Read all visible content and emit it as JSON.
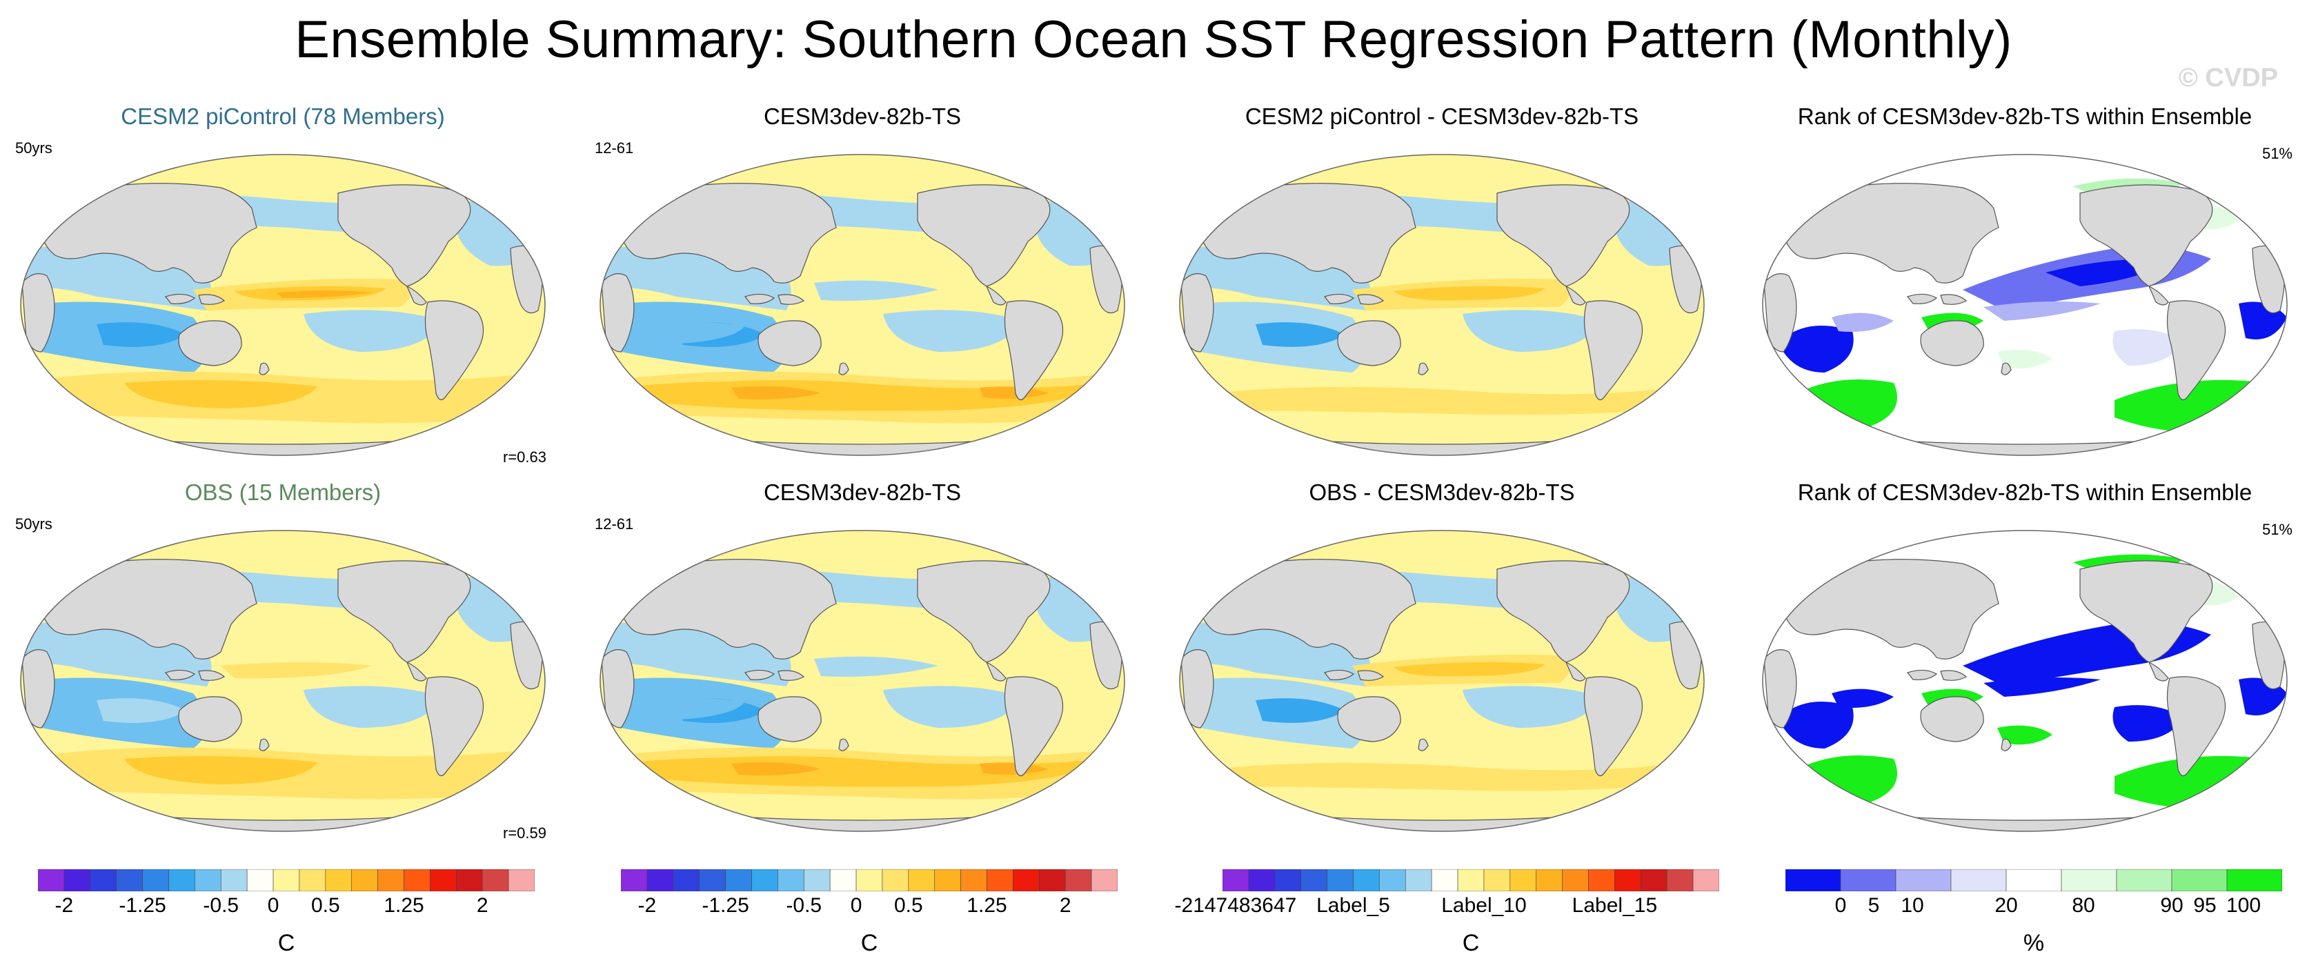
{
  "title": "Ensemble Summary: Southern Ocean SST Regression Pattern (Monthly)",
  "watermark": "© CVDP",
  "colors": {
    "title_blue": "#2f6f8f",
    "title_green": "#5b8a5b",
    "land": "#d9d9d9",
    "diverging": [
      "#8a2be2",
      "#4b22e0",
      "#2f3fe0",
      "#3060e0",
      "#2f86e6",
      "#36a6ee",
      "#6ec0f0",
      "#a8d8f0",
      "#fffff8",
      "#fff59a",
      "#ffe36a",
      "#ffcc33",
      "#ffb21f",
      "#ff8c19",
      "#ff5a10",
      "#ee1a0a",
      "#d11a1a",
      "#d64545",
      "#f7a8a8"
    ],
    "rank": [
      "#0a14f0",
      "#6b70f2",
      "#b0b3f5",
      "#e1e3fa",
      "#ffffff",
      "#e3fbe3",
      "#b8f5b8",
      "#86f086",
      "#19ee19"
    ]
  },
  "panels": [
    {
      "title": "CESM2 piControl (78 Members)",
      "left": "50yrs",
      "right": "",
      "bottom": "r=0.63",
      "kind": "model",
      "title_color": "blue"
    },
    {
      "title": "CESM3dev-82b-TS",
      "left": "12-61",
      "right": "",
      "bottom": "",
      "kind": "sim",
      "title_color": "black"
    },
    {
      "title": "CESM2 piControl - CESM3dev-82b-TS",
      "left": "",
      "right": "",
      "bottom": "",
      "kind": "diff",
      "title_color": "black"
    },
    {
      "title": "Rank of CESM3dev-82b-TS within Ensemble",
      "left": "",
      "right": "51%",
      "bottom": "",
      "kind": "rank",
      "title_color": "black"
    },
    {
      "title": "OBS (15 Members)",
      "left": "50yrs",
      "right": "",
      "bottom": "r=0.59",
      "kind": "obs",
      "title_color": "green"
    },
    {
      "title": "CESM3dev-82b-TS",
      "left": "12-61",
      "right": "",
      "bottom": "",
      "kind": "sim",
      "title_color": "black"
    },
    {
      "title": "OBS - CESM3dev-82b-TS",
      "left": "",
      "right": "",
      "bottom": "",
      "kind": "diff",
      "title_color": "black"
    },
    {
      "title": "Rank of CESM3dev-82b-TS within Ensemble",
      "left": "",
      "right": "51%",
      "bottom": "",
      "kind": "rank2",
      "title_color": "black"
    }
  ],
  "colorbars": [
    {
      "unit": "C",
      "levels": 19,
      "palette": "diverging",
      "labels": [
        {
          "text": "-2",
          "at": 1
        },
        {
          "text": "-1.25",
          "at": 4
        },
        {
          "text": "-0.5",
          "at": 7
        },
        {
          "text": "0",
          "at": 9
        },
        {
          "text": "0.5",
          "at": 11
        },
        {
          "text": "1.25",
          "at": 14
        },
        {
          "text": "2",
          "at": 17
        }
      ]
    },
    {
      "unit": "C",
      "levels": 19,
      "palette": "diverging",
      "labels": [
        {
          "text": "-2",
          "at": 1
        },
        {
          "text": "-1.25",
          "at": 4
        },
        {
          "text": "-0.5",
          "at": 7
        },
        {
          "text": "0",
          "at": 9
        },
        {
          "text": "0.5",
          "at": 11
        },
        {
          "text": "1.25",
          "at": 14
        },
        {
          "text": "2",
          "at": 17
        }
      ]
    },
    {
      "unit": "C",
      "levels": 19,
      "palette": "diverging",
      "labels": [
        {
          "text": "-2147483647",
          "at": 0.5
        },
        {
          "text": "Label_5",
          "at": 5
        },
        {
          "text": "Label_10",
          "at": 10
        },
        {
          "text": "Label_15",
          "at": 15
        }
      ]
    },
    {
      "unit": "%",
      "levels": 9,
      "palette": "rank",
      "labels": [
        {
          "text": "0",
          "at": 1
        },
        {
          "text": "5",
          "at": 1.6
        },
        {
          "text": "10",
          "at": 2.3
        },
        {
          "text": "20",
          "at": 4
        },
        {
          "text": "80",
          "at": 5.4
        },
        {
          "text": "90",
          "at": 7
        },
        {
          "text": "95",
          "at": 7.6
        },
        {
          "text": "100",
          "at": 8.3
        }
      ]
    }
  ],
  "chart_data": {
    "type": "heatmap",
    "title": "Ensemble Summary: Southern Ocean SST Regression Pattern (Monthly)",
    "variable": "SST regression",
    "unit_main": "C",
    "unit_rank": "%",
    "contour_levels_C": [
      -2,
      -1.75,
      -1.5,
      -1.25,
      -1,
      -0.75,
      -0.5,
      -0.25,
      0,
      0.25,
      0.5,
      0.75,
      1,
      1.25,
      1.5,
      1.75,
      2
    ],
    "rank_levels_pct": [
      0,
      5,
      10,
      20,
      80,
      90,
      95,
      100
    ],
    "pattern_correlation": {
      "CESM2 piControl": 0.63,
      "OBS": 0.59
    },
    "rank_percent": 51
  }
}
